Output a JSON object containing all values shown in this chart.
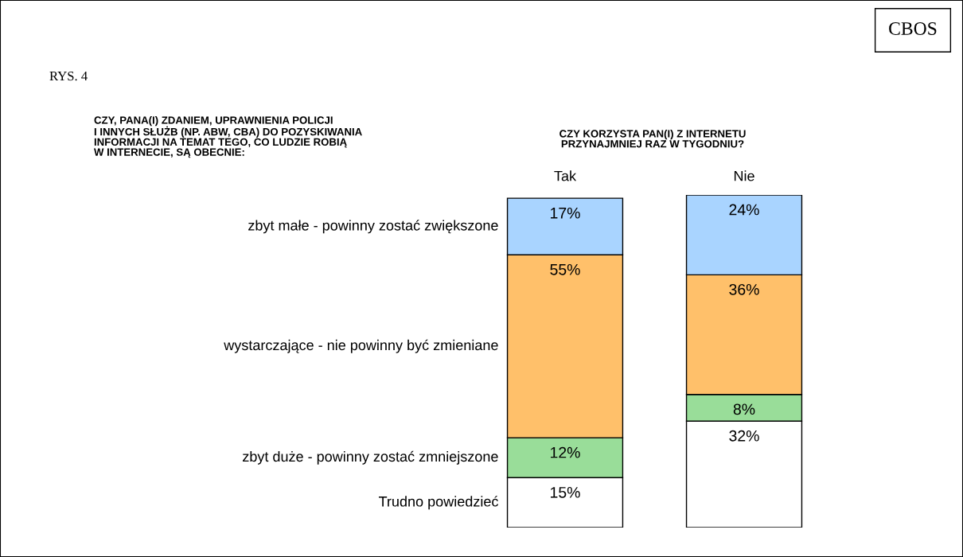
{
  "chart_data": {
    "type": "bar",
    "stacked": true,
    "title": "CZY, PANA(I) ZDANIEM, UPRAWNIENIA POLICJI\nI INNYCH SŁUŻB (NP. ABW, CBA) DO POZYSKIWANIA\nINFORMACJI NA TEMAT TEGO, CO LUDZIE ROBIĄ\nW INTERNECIE, SĄ OBECNIE:",
    "subtitle": "CZY KORZYSTA PAN(I) Z INTERNETU\nPRZYNAJMNIEJ RAZ W TYGODNIU?",
    "annotations": [
      "CBOS",
      "RYS. 4"
    ],
    "categories": [
      "Tak",
      "Nie"
    ],
    "series": [
      {
        "name": "Trudno powiedzieć",
        "color": "#ffffff",
        "values": [
          15,
          32
        ],
        "value_labels": [
          "15%",
          "32%"
        ]
      },
      {
        "name": "zbyt duże - powinny zostać zmniejszone",
        "color": "#99dd99",
        "values": [
          12,
          8
        ],
        "value_labels": [
          "12%",
          "8%"
        ]
      },
      {
        "name": "wystarczające - nie powinny być zmieniane",
        "color": "#ffc06a",
        "values": [
          55,
          36
        ],
        "value_labels": [
          "55%",
          "36%"
        ]
      },
      {
        "name": "zbyt małe - powinny zostać zwiększone",
        "color": "#a9d4ff",
        "values": [
          17,
          24
        ],
        "value_labels": [
          "17%",
          "24%"
        ]
      }
    ],
    "legend": false
  }
}
